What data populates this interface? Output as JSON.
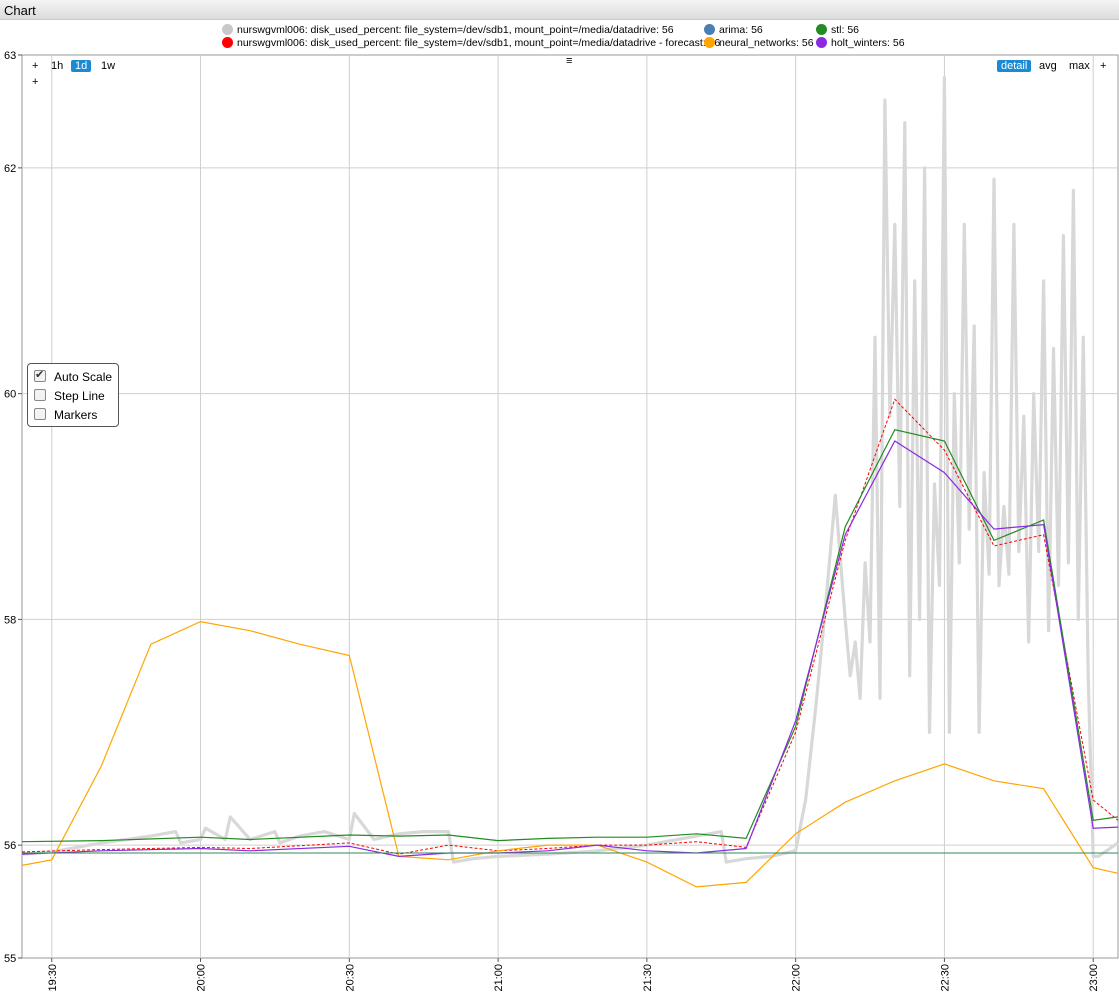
{
  "window": {
    "title": "Chart"
  },
  "toolbar": {
    "zoom_in_1": "+",
    "zoom_in_2": "+",
    "range_1h": "1h",
    "range_1d": "1d",
    "range_1w": "1w",
    "menu_icon": "≡",
    "detail": "detail",
    "avg": "avg",
    "max": "max",
    "plus_right": "+"
  },
  "options": {
    "auto_scale": {
      "label": "Auto Scale",
      "checked": true
    },
    "step_line": {
      "label": "Step Line",
      "checked": false
    },
    "markers": {
      "label": "Markers",
      "checked": false
    }
  },
  "legend": [
    {
      "label": "nurswgvml006: disk_used_percent: file_system=/dev/sdb1, mount_point=/media/datadrive: 56",
      "color": "#c8c8c8"
    },
    {
      "label": "nurswgvml006: disk_used_percent: file_system=/dev/sdb1, mount_point=/media/datadrive - forecast: 56",
      "color": "#ff0000"
    },
    {
      "label": "arima: 56",
      "color": "#4a7fb5"
    },
    {
      "label": "neural_networks: 56",
      "color": "#ffa500"
    },
    {
      "label": "stl: 56",
      "color": "#228b22"
    },
    {
      "label": "holt_winters: 56",
      "color": "#8a2be2"
    }
  ],
  "chart_data": {
    "type": "line",
    "ylim": [
      55,
      63
    ],
    "y_ticks": [
      "55",
      "56",
      "58",
      "60",
      "62",
      "63"
    ],
    "xlim": [
      "19:24",
      "23:05"
    ],
    "x_ticks": [
      "19:30",
      "20:00",
      "20:30",
      "21:00",
      "21:30",
      "22:00",
      "22:30",
      "23:00"
    ],
    "grid": true,
    "series": [
      {
        "name": "nurswgvml006: disk_used_percent: file_system=/dev/sdb1, mount_point=/media/datadrive",
        "color": "#d8d8d8",
        "style": "thick",
        "x": [
          "19:24",
          "19:30",
          "19:40",
          "19:50",
          "19:55",
          "19:56",
          "20:00",
          "20:01",
          "20:05",
          "20:06",
          "20:10",
          "20:15",
          "20:16",
          "20:20",
          "20:25",
          "20:30",
          "20:31",
          "20:35",
          "20:40",
          "20:45",
          "20:50",
          "20:51",
          "20:55",
          "21:00",
          "21:10",
          "21:20",
          "21:30",
          "21:40",
          "21:45",
          "21:46",
          "21:50",
          "21:55",
          "22:00",
          "22:02",
          "22:04",
          "22:06",
          "22:08",
          "22:10",
          "22:11",
          "22:12",
          "22:13",
          "22:14",
          "22:15",
          "22:16",
          "22:17",
          "22:18",
          "22:19",
          "22:20",
          "22:21",
          "22:22",
          "22:23",
          "22:24",
          "22:25",
          "22:26",
          "22:27",
          "22:28",
          "22:29",
          "22:30",
          "22:31",
          "22:32",
          "22:33",
          "22:34",
          "22:35",
          "22:36",
          "22:37",
          "22:38",
          "22:39",
          "22:40",
          "22:41",
          "22:42",
          "22:43",
          "22:44",
          "22:45",
          "22:46",
          "22:47",
          "22:48",
          "22:49",
          "22:50",
          "22:51",
          "22:52",
          "22:53",
          "22:54",
          "22:55",
          "22:56",
          "22:57",
          "22:58",
          "22:59",
          "23:00",
          "23:01",
          "23:05"
        ],
        "values": [
          55.92,
          55.94,
          56.02,
          56.08,
          56.12,
          56.02,
          56.05,
          56.15,
          56.05,
          56.25,
          56.05,
          56.12,
          56.02,
          56.08,
          56.12,
          56.05,
          56.28,
          56.05,
          56.1,
          56.12,
          56.12,
          55.85,
          55.88,
          55.9,
          55.92,
          55.95,
          56.0,
          56.08,
          56.12,
          55.85,
          55.88,
          55.9,
          55.95,
          56.4,
          57.2,
          58.1,
          59.1,
          58.0,
          57.5,
          57.8,
          57.3,
          58.5,
          57.8,
          60.5,
          57.3,
          62.6,
          59.8,
          61.5,
          59.0,
          62.4,
          57.5,
          61.0,
          58.0,
          62.0,
          57.0,
          59.2,
          58.3,
          62.8,
          57.0,
          60.0,
          58.5,
          61.5,
          58.8,
          60.6,
          57.0,
          59.3,
          58.4,
          61.9,
          58.3,
          59.0,
          58.4,
          61.5,
          58.6,
          59.8,
          57.8,
          60.0,
          58.6,
          61.0,
          57.9,
          60.4,
          58.3,
          61.4,
          58.5,
          61.8,
          58.0,
          60.5,
          57.5,
          55.9,
          55.9,
          56.02
        ]
      },
      {
        "name": "nurswgvml006: disk_used_percent: file_system=/dev/sdb1, mount_point=/media/datadrive - forecast",
        "color": "#ff0000",
        "style": "dashed",
        "x": [
          "19:24",
          "19:40",
          "20:00",
          "20:10",
          "20:30",
          "20:40",
          "20:50",
          "21:00",
          "21:10",
          "21:20",
          "21:30",
          "21:40",
          "21:50",
          "22:00",
          "22:10",
          "22:20",
          "22:30",
          "22:40",
          "22:50",
          "23:00",
          "23:05"
        ],
        "values": [
          55.94,
          55.96,
          55.98,
          55.97,
          56.02,
          55.92,
          56.0,
          55.95,
          55.97,
          56.0,
          56.0,
          56.03,
          55.98,
          57.0,
          58.7,
          59.95,
          59.5,
          58.65,
          58.75,
          56.4,
          56.22
        ]
      },
      {
        "name": "neural_networks",
        "color": "#ffa500",
        "style": "solid",
        "x": [
          "19:24",
          "19:30",
          "19:40",
          "19:50",
          "20:00",
          "20:10",
          "20:20",
          "20:30",
          "20:40",
          "20:50",
          "21:00",
          "21:10",
          "21:20",
          "21:30",
          "21:40",
          "21:50",
          "22:00",
          "22:10",
          "22:20",
          "22:30",
          "22:40",
          "22:50",
          "23:00",
          "23:05"
        ],
        "values": [
          55.82,
          55.87,
          56.7,
          57.78,
          57.98,
          57.9,
          57.78,
          57.68,
          55.9,
          55.87,
          55.95,
          56.0,
          56.0,
          55.85,
          55.63,
          55.67,
          56.1,
          56.38,
          56.57,
          56.72,
          56.57,
          56.5,
          55.8,
          55.75
        ]
      },
      {
        "name": "stl",
        "color": "#228b22",
        "style": "solid",
        "x": [
          "19:24",
          "19:40",
          "20:00",
          "20:10",
          "20:30",
          "20:40",
          "20:50",
          "21:00",
          "21:10",
          "21:20",
          "21:30",
          "21:40",
          "21:50",
          "22:00",
          "22:10",
          "22:20",
          "22:30",
          "22:40",
          "22:50",
          "23:00",
          "23:05"
        ],
        "values": [
          56.03,
          56.04,
          56.07,
          56.05,
          56.09,
          56.08,
          56.09,
          56.04,
          56.06,
          56.07,
          56.07,
          56.1,
          56.06,
          57.05,
          58.82,
          59.68,
          59.58,
          58.7,
          58.88,
          56.22,
          56.25
        ]
      },
      {
        "name": "holt_winters",
        "color": "#8a2be2",
        "style": "solid",
        "x": [
          "19:24",
          "19:40",
          "20:00",
          "20:10",
          "20:30",
          "20:40",
          "20:50",
          "21:00",
          "21:10",
          "21:20",
          "21:30",
          "21:40",
          "21:50",
          "22:00",
          "22:10",
          "22:20",
          "22:30",
          "22:40",
          "22:50",
          "23:00",
          "23:05"
        ],
        "values": [
          55.92,
          55.95,
          55.97,
          55.95,
          55.99,
          55.9,
          55.93,
          55.93,
          55.95,
          56.0,
          55.95,
          55.93,
          55.97,
          57.1,
          58.75,
          59.58,
          59.3,
          58.8,
          58.84,
          56.15,
          56.16
        ]
      },
      {
        "name": "arima",
        "color": "#2e8b57",
        "style": "thin",
        "x": [
          "19:24",
          "23:05"
        ],
        "values": [
          55.93,
          55.93
        ]
      }
    ]
  }
}
